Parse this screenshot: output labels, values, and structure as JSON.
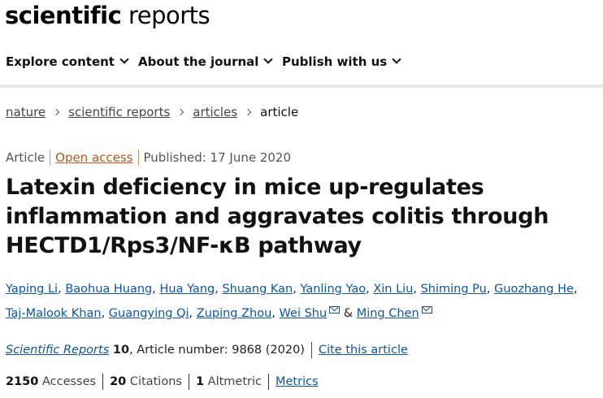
{
  "site": {
    "logo_bold": "scientific",
    "logo_light": "reports"
  },
  "nav": [
    {
      "label": "Explore content"
    },
    {
      "label": "About the journal"
    },
    {
      "label": "Publish with us"
    }
  ],
  "breadcrumb": {
    "items": [
      "nature",
      "scientific reports",
      "articles"
    ],
    "current": "article"
  },
  "meta": {
    "type": "Article",
    "access": "Open access",
    "published": "Published: 17 June 2020"
  },
  "article": {
    "title": "Latexin deficiency in mice up-regulates inflammation and aggravates colitis through HECTD1/Rps3/NF-κB pathway"
  },
  "authors": [
    "Yaping Li",
    "Baohua Huang",
    "Hua Yang",
    "Shuang Kan",
    "Yanling Yao",
    "Xin Liu",
    "Shiming Pu",
    "Guozhang He",
    "Taj-Malook Khan",
    "Guangying Qi",
    "Zuping Zhou",
    "Wei Shu",
    "Ming Chen"
  ],
  "authors_and": "&",
  "citation": {
    "journal": "Scientific Reports",
    "volume": "10",
    "article_number": ", Article number: 9868 (2020)",
    "cite_link": "Cite this article"
  },
  "metrics": {
    "accesses_value": "2150",
    "accesses_label": "Accesses",
    "citations_value": "20",
    "citations_label": "Citations",
    "altmetric_value": "1",
    "altmetric_label": "Altmetric",
    "metrics_link": "Metrics"
  },
  "colors": {
    "link": "#0c55a8",
    "open_access": "#c0561b"
  }
}
